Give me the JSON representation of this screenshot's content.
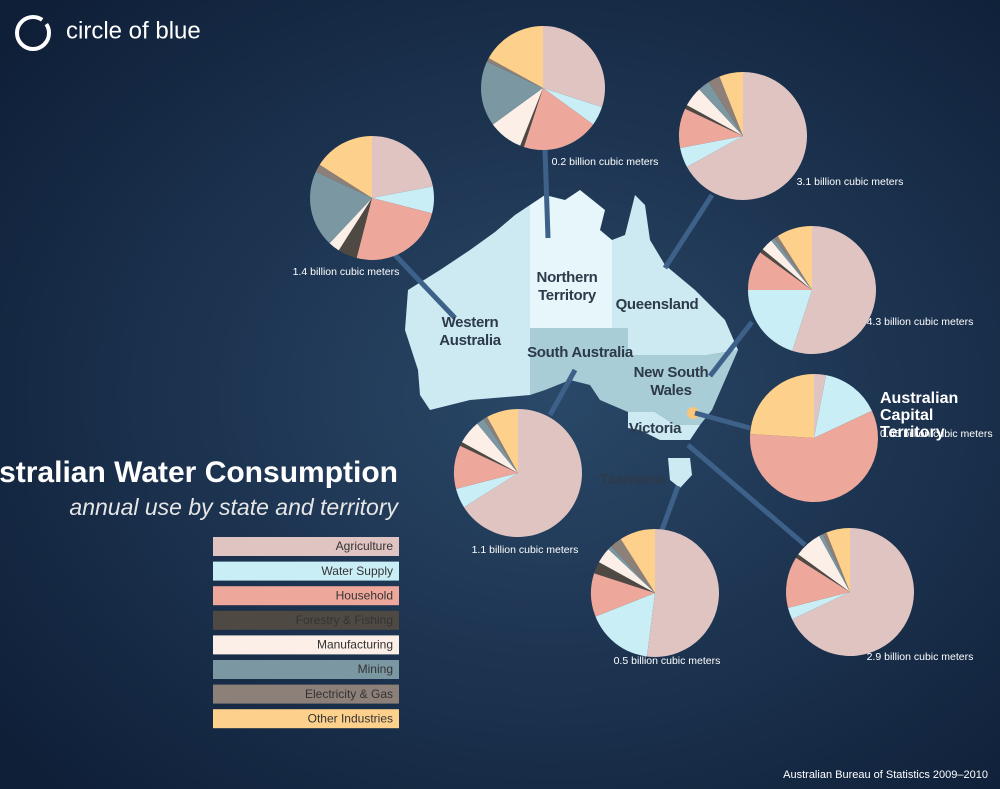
{
  "logo": "circle of blue",
  "title": "Australian Water Consumption",
  "subtitle": "annual use by state and territory",
  "source": "Australian Bureau of Statistics 2009–2010",
  "chart_data": {
    "type": "pie",
    "categories": [
      "Agriculture",
      "Water Supply",
      "Household",
      "Forestry & Fishing",
      "Manufacturing",
      "Mining",
      "Electricity & Gas",
      "Other Industries"
    ],
    "colors": [
      "#dfc4c1",
      "#c9eef6",
      "#eea89b",
      "#4f4943",
      "#fbefe7",
      "#7a97a2",
      "#8d8078",
      "#fdd08b"
    ],
    "series": [
      {
        "name": "Western Australia",
        "label": "1.4 billion cubic meters",
        "values": [
          22,
          7,
          25,
          5,
          3,
          20,
          2,
          16
        ]
      },
      {
        "name": "Northern Territory",
        "label": "0.2 billion cubic meters",
        "values": [
          30,
          5,
          20,
          1,
          9,
          17,
          1,
          17
        ]
      },
      {
        "name": "Queensland",
        "label": "3.1 billion cubic meters",
        "values": [
          67,
          5,
          10,
          1,
          5,
          3,
          3,
          6
        ]
      },
      {
        "name": "New South Wales",
        "label": "4.3 billion cubic meters",
        "values": [
          55,
          20,
          10,
          1,
          3,
          1,
          1,
          9
        ]
      },
      {
        "name": "Australian Capital Territory",
        "label": "0.05 billion cubic meters",
        "values": [
          3,
          15,
          58,
          0,
          0,
          0,
          0,
          24
        ]
      },
      {
        "name": "South Australia",
        "label": "1.1 billion cubic meters",
        "values": [
          66,
          5,
          11,
          1,
          6,
          2,
          1,
          8
        ]
      },
      {
        "name": "Victoria",
        "label": "2.9 billion cubic meters",
        "values": [
          68,
          3,
          13,
          1,
          7,
          1,
          1,
          6
        ]
      },
      {
        "name": "Tasmania",
        "label": "0.5 billion cubic meters",
        "values": [
          52,
          17,
          11,
          3,
          4,
          1,
          3,
          9
        ]
      }
    ]
  }
}
